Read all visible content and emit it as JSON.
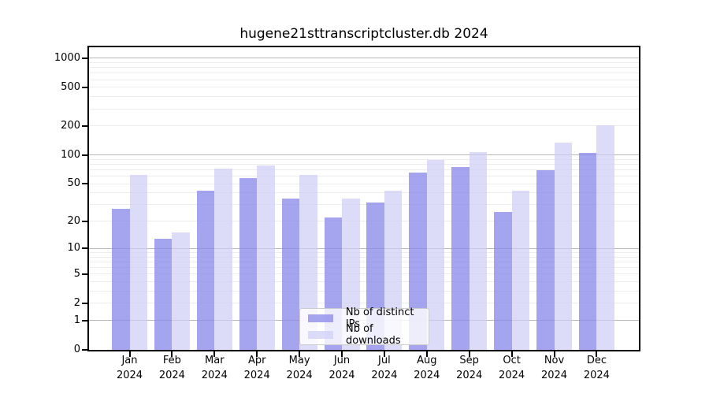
{
  "title": "hugene21sttranscriptcluster.db 2024",
  "y_axis": {
    "ticks": [
      0,
      1,
      2,
      5,
      10,
      20,
      50,
      100,
      200,
      500,
      1000
    ]
  },
  "x_axis": {
    "months": [
      "Jan",
      "Feb",
      "Mar",
      "Apr",
      "May",
      "Jun",
      "Jul",
      "Aug",
      "Sep",
      "Oct",
      "Nov",
      "Dec"
    ],
    "year": "2024"
  },
  "legend": {
    "items": [
      {
        "label": "Nb of distinct IPs",
        "series": "ips"
      },
      {
        "label": "Nb of downloads",
        "series": "downloads"
      }
    ]
  },
  "colors": {
    "ips": "rgba(140,140,235,0.78)",
    "downloads": "rgba(205,205,246,0.70)",
    "grid_major": "#b8b8b8",
    "grid_minor": "#ededed"
  },
  "chart_data": {
    "type": "bar",
    "title": "hugene21sttranscriptcluster.db 2024",
    "categories": [
      "Jan 2024",
      "Feb 2024",
      "Mar 2024",
      "Apr 2024",
      "May 2024",
      "Jun 2024",
      "Jul 2024",
      "Aug 2024",
      "Sep 2024",
      "Oct 2024",
      "Nov 2024",
      "Dec 2024"
    ],
    "series": [
      {
        "name": "Nb of distinct IPs",
        "values": [
          27,
          13,
          42,
          57,
          35,
          22,
          32,
          66,
          75,
          25,
          69,
          105
        ]
      },
      {
        "name": "Nb of downloads",
        "values": [
          62,
          15,
          72,
          78,
          62,
          35,
          42,
          88,
          108,
          42,
          135,
          204
        ]
      }
    ],
    "xlabel": "",
    "ylabel": "",
    "yscale": "log10(value+1)",
    "yticks": [
      0,
      1,
      2,
      5,
      10,
      20,
      50,
      100,
      200,
      500,
      1000
    ],
    "ylim": [
      0,
      1300
    ],
    "grid": true,
    "legend_position": "lower center"
  }
}
